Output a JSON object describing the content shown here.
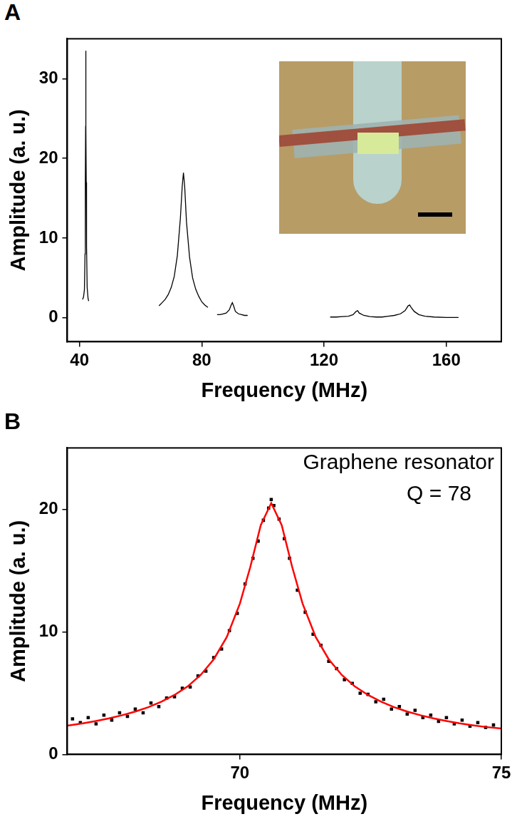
{
  "chart_data": [
    {
      "type": "line",
      "panel": "A",
      "x": [
        41.0,
        41.3,
        41.6,
        41.8,
        41.9,
        42.0,
        42.05,
        42.1,
        42.2,
        42.3,
        42.5,
        42.8,
        43.0,
        54.5,
        66,
        67,
        68,
        69,
        70,
        71,
        72,
        73,
        73.6,
        74,
        74.4,
        75,
        76,
        77,
        78,
        79,
        80,
        81,
        82,
        83.5,
        85,
        86,
        87,
        88,
        89,
        89.6,
        90,
        90.4,
        91,
        92,
        93,
        94,
        95,
        108,
        122,
        124,
        126,
        128,
        129.5,
        130.5,
        131,
        131.5,
        133,
        135,
        137,
        139,
        141,
        143,
        145,
        146.5,
        147.5,
        148,
        148.5,
        149.5,
        151,
        153,
        156,
        160,
        164
      ],
      "values": [
        2.3,
        2.6,
        3.5,
        8,
        17,
        24,
        33.5,
        24,
        17,
        9,
        3.8,
        2.4,
        2.1,
        null,
        1.5,
        1.9,
        2.3,
        2.9,
        3.8,
        5.2,
        7.8,
        12.5,
        16.5,
        18.2,
        16.5,
        12,
        7.6,
        5.0,
        3.6,
        2.7,
        2.0,
        1.6,
        1.3,
        null,
        0.4,
        0.4,
        0.5,
        0.6,
        1.0,
        1.6,
        1.9,
        1.5,
        0.8,
        0.5,
        0.4,
        0.3,
        0.3,
        null,
        0.1,
        0.1,
        0.15,
        0.2,
        0.4,
        0.8,
        0.9,
        0.6,
        0.3,
        0.15,
        0.1,
        0.1,
        0.2,
        0.3,
        0.5,
        0.9,
        1.5,
        1.6,
        1.3,
        0.8,
        0.4,
        0.2,
        0.1,
        0.05,
        0.05
      ],
      "color": "#000000",
      "marker": "none",
      "line_style": "solid",
      "xlabel": "Frequency (MHz)",
      "ylabel": "Amplitude (a. u.)",
      "xlim": [
        36,
        178
      ],
      "ylim": [
        -3,
        35
      ],
      "xticks": [
        40,
        80,
        120,
        160
      ],
      "yticks": [
        0,
        10,
        20,
        30
      ],
      "grid": false
    },
    {
      "type": "scatter",
      "panel": "B",
      "annotations": [
        "Graphene resonator",
        "Q = 78"
      ],
      "series": [
        {
          "type": "scatter",
          "color": "#000000",
          "marker": "square",
          "x": [
            66.8,
            66.95,
            67.1,
            67.25,
            67.4,
            67.55,
            67.7,
            67.85,
            68.0,
            68.15,
            68.3,
            68.45,
            68.6,
            68.75,
            68.9,
            69.05,
            69.2,
            69.35,
            69.5,
            69.65,
            69.8,
            69.95,
            70.1,
            70.25,
            70.35,
            70.45,
            70.55,
            70.6,
            70.65,
            70.75,
            70.85,
            70.95,
            71.1,
            71.25,
            71.4,
            71.55,
            71.7,
            71.85,
            72.0,
            72.15,
            72.3,
            72.45,
            72.6,
            72.75,
            72.9,
            73.05,
            73.2,
            73.35,
            73.5,
            73.65,
            73.8,
            73.95,
            74.1,
            74.25,
            74.4,
            74.55,
            74.7,
            74.85
          ],
          "values": [
            2.9,
            2.6,
            3.0,
            2.5,
            3.2,
            2.8,
            3.4,
            3.1,
            3.7,
            3.4,
            4.2,
            3.9,
            4.6,
            4.7,
            5.4,
            5.5,
            6.4,
            6.8,
            7.9,
            8.6,
            10.1,
            11.5,
            13.9,
            16.0,
            17.4,
            19.1,
            20.1,
            20.8,
            20.3,
            19.2,
            17.6,
            16.0,
            13.4,
            11.6,
            9.8,
            8.9,
            7.6,
            7.0,
            6.1,
            5.8,
            5.0,
            4.9,
            4.3,
            4.5,
            3.7,
            3.9,
            3.3,
            3.6,
            3.0,
            3.2,
            2.7,
            3.0,
            2.5,
            2.8,
            2.3,
            2.6,
            2.2,
            2.4
          ]
        },
        {
          "type": "line",
          "color": "#ff0000",
          "marker": "none",
          "line_style": "solid",
          "x": [
            66.7,
            66.75,
            67,
            67.25,
            67.5,
            67.75,
            68,
            68.25,
            68.5,
            68.75,
            69,
            69.25,
            69.5,
            69.75,
            70,
            70.2,
            70.4,
            70.6,
            70.8,
            71,
            71.2,
            71.45,
            71.7,
            71.95,
            72.2,
            72.45,
            72.7,
            72.95,
            73.2,
            73.45,
            73.7,
            73.95,
            74.2,
            74.45,
            74.7,
            75
          ],
          "values": [
            2.36,
            2.38,
            2.54,
            2.73,
            2.94,
            3.2,
            3.5,
            3.85,
            4.3,
            4.85,
            5.54,
            6.48,
            7.76,
            9.58,
            12.3,
            15.3,
            18.7,
            20.5,
            18.7,
            15.3,
            12.3,
            9.58,
            7.76,
            6.48,
            5.54,
            4.85,
            4.3,
            3.85,
            3.5,
            3.2,
            2.94,
            2.73,
            2.54,
            2.38,
            2.24,
            2.11
          ]
        }
      ],
      "xlabel": "Frequency (MHz)",
      "ylabel": "Amplitude (a. u.)",
      "xlim": [
        66.7,
        75
      ],
      "ylim": [
        0,
        25
      ],
      "xticks": [
        70,
        75
      ],
      "yticks": [
        0,
        10,
        20
      ],
      "grid": false
    }
  ]
}
